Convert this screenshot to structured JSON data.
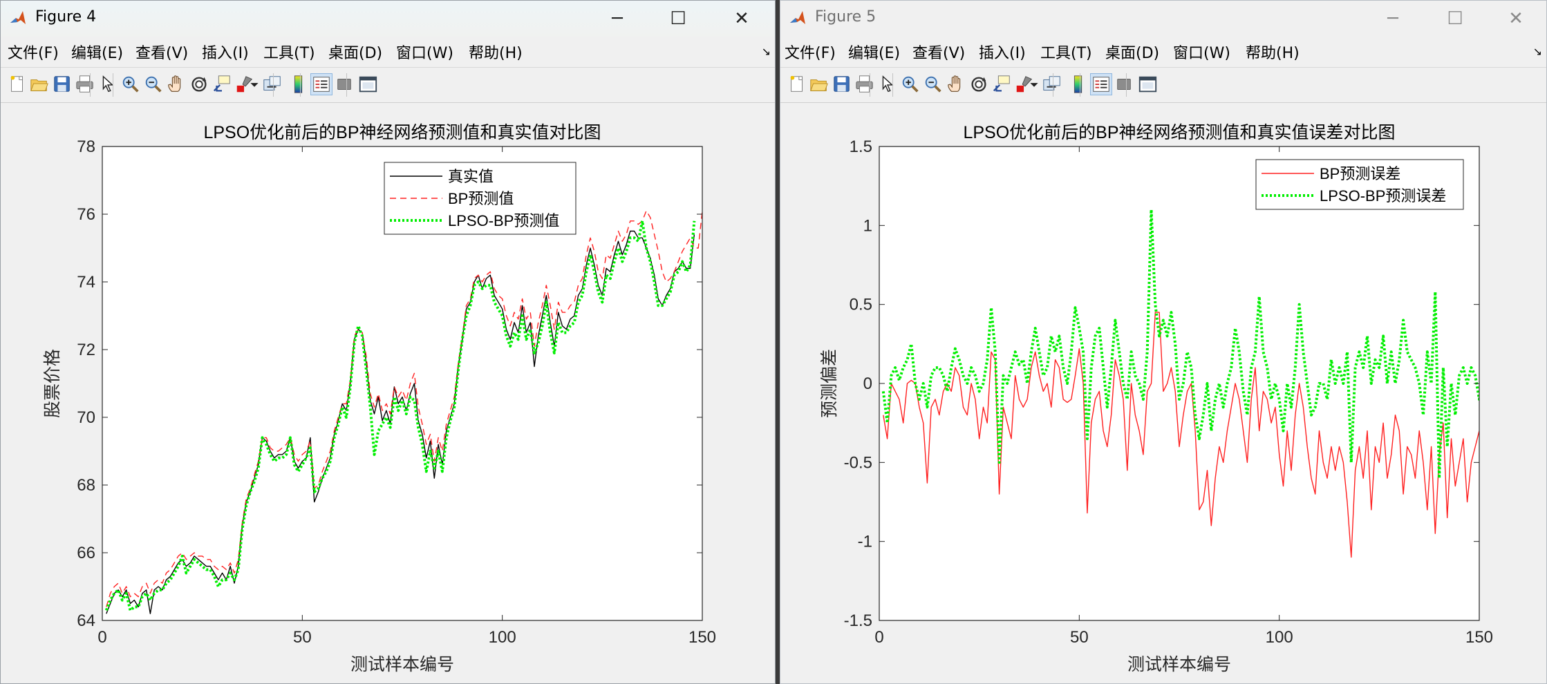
{
  "colors": {
    "truth_line": "#000000",
    "bp_line": "#ff2020",
    "lpso_line": "#00ee00",
    "plot_bg": "#ffffff",
    "window_bg": "#f0f0f0"
  },
  "menu_labels": [
    "文件(F)",
    "编辑(E)",
    "查看(V)",
    "插入(I)",
    "工具(T)",
    "桌面(D)",
    "窗口(W)",
    "帮助(H)"
  ],
  "toolbar_icons": [
    "new-figure-icon",
    "open-file-icon",
    "save-icon",
    "print-icon",
    "edit-plot-arrow-icon",
    "zoom-in-icon",
    "zoom-out-icon",
    "pan-hand-icon",
    "rotate-3d-icon",
    "data-cursor-icon",
    "brush-icon",
    "brush-dropdown-icon",
    "link-plot-icon",
    "insert-colorbar-icon",
    "insert-legend-icon",
    "hide-plot-tools-icon",
    "show-plot-tools-icon"
  ],
  "window4": {
    "title": "Figure 4",
    "window_controls": {
      "minimize": "─",
      "maximize": "☐",
      "close": "✕"
    }
  },
  "window5": {
    "title": "Figure 5",
    "window_controls": {
      "minimize": "─",
      "maximize": "☐",
      "close": "✕"
    }
  },
  "chart_data": [
    {
      "type": "line",
      "title": "LPSO优化前后的BP神经网络预测值和真实值对比图",
      "xlabel": "测试样本编号",
      "ylabel": "股票价格",
      "xlim": [
        0,
        150
      ],
      "ylim": [
        64,
        78
      ],
      "x_ticks": [
        0,
        50,
        100,
        150
      ],
      "y_ticks": [
        64,
        66,
        68,
        70,
        72,
        74,
        76,
        78
      ],
      "legend_position": "top-center",
      "series_x_start": 1,
      "series": [
        {
          "name": "真实值",
          "style": "solid",
          "values": [
            64.2,
            64.5,
            64.8,
            64.9,
            64.7,
            64.9,
            64.5,
            64.6,
            64.4,
            64.8,
            64.9,
            64.2,
            64.9,
            65.0,
            64.9,
            65.2,
            65.3,
            65.5,
            65.7,
            65.8,
            65.6,
            65.7,
            65.9,
            65.8,
            65.7,
            65.6,
            65.6,
            65.4,
            65.2,
            65.4,
            65.2,
            65.6,
            65.1,
            65.6,
            66.8,
            67.5,
            67.8,
            68.2,
            68.6,
            69.4,
            69.3,
            69.0,
            68.8,
            68.9,
            68.9,
            69.0,
            69.4,
            68.7,
            68.5,
            68.7,
            68.8,
            69.4,
            67.5,
            67.8,
            68.2,
            68.5,
            68.8,
            69.5,
            69.9,
            70.4,
            70.2,
            71.0,
            72.3,
            72.6,
            72.5,
            71.6,
            70.5,
            70.1,
            70.6,
            69.9,
            70.2,
            69.8,
            70.9,
            70.4,
            70.6,
            70.2,
            70.7,
            71.0,
            69.9,
            69.5,
            68.8,
            69.3,
            68.2,
            69.2,
            68.6,
            69.6,
            70.0,
            70.4,
            71.5,
            72.3,
            73.2,
            73.4,
            74.0,
            74.2,
            73.8,
            74.1,
            74.2,
            73.6,
            73.4,
            73.2,
            72.6,
            72.3,
            72.8,
            72.5,
            73.3,
            72.5,
            72.8,
            71.5,
            72.4,
            73.0,
            73.6,
            72.8,
            72.1,
            73.1,
            72.7,
            72.6,
            72.9,
            73.0,
            73.6,
            73.8,
            74.5,
            75.0,
            74.5,
            73.9,
            73.6,
            74.4,
            74.3,
            74.8,
            75.2,
            74.8,
            75.1,
            75.5,
            75.5,
            75.3,
            75.3,
            75.0,
            74.7,
            74.2,
            73.5,
            73.3,
            73.6,
            73.8,
            74.3,
            74.4,
            74.6,
            74.4,
            74.4,
            75.4
          ]
        },
        {
          "name": "BP预测值",
          "style": "dashed",
          "values": [
            64.4,
            64.8,
            65.0,
            65.1,
            64.8,
            65.0,
            64.7,
            64.8,
            64.7,
            65.0,
            65.1,
            64.8,
            65.1,
            65.2,
            65.1,
            65.4,
            65.5,
            65.7,
            65.9,
            66.0,
            65.8,
            65.9,
            66.0,
            65.9,
            65.9,
            65.8,
            65.8,
            65.6,
            65.5,
            65.6,
            65.5,
            65.7,
            65.4,
            65.8,
            66.9,
            67.6,
            67.9,
            68.3,
            68.7,
            69.4,
            69.4,
            69.1,
            69.0,
            69.0,
            69.1,
            69.2,
            69.4,
            68.9,
            68.7,
            68.9,
            69.0,
            69.3,
            67.9,
            68.0,
            68.4,
            68.7,
            69.0,
            69.6,
            70.0,
            70.4,
            70.4,
            71.1,
            72.4,
            72.6,
            72.5,
            71.8,
            70.7,
            70.3,
            70.7,
            70.2,
            70.4,
            70.1,
            70.9,
            70.6,
            70.8,
            70.5,
            71.0,
            71.3,
            70.3,
            69.8,
            69.2,
            69.5,
            68.7,
            69.4,
            69.0,
            69.8,
            70.2,
            70.6,
            71.6,
            72.4,
            73.3,
            73.5,
            74.1,
            74.2,
            74.0,
            74.2,
            74.3,
            73.8,
            73.6,
            73.5,
            73.0,
            72.7,
            73.1,
            72.9,
            73.5,
            72.9,
            73.1,
            72.1,
            72.8,
            73.3,
            73.9,
            73.3,
            72.6,
            73.4,
            73.1,
            73.1,
            73.3,
            73.4,
            73.9,
            74.1,
            74.8,
            75.3,
            74.9,
            74.3,
            74.1,
            74.8,
            74.7,
            75.1,
            75.5,
            75.2,
            75.4,
            75.8,
            75.8,
            75.7,
            75.8,
            76.1,
            75.9,
            75.4,
            74.9,
            74.3,
            74.0,
            74.1,
            74.3,
            74.6,
            74.9,
            75.1,
            75.3,
            75.0,
            75.0,
            76.1
          ]
        },
        {
          "name": "LPSO-BP预测值",
          "style": "dotted",
          "values": [
            64.3,
            64.6,
            64.8,
            64.9,
            64.6,
            64.8,
            64.3,
            64.4,
            64.4,
            64.7,
            64.8,
            64.6,
            64.8,
            64.9,
            64.9,
            65.1,
            65.2,
            65.4,
            65.6,
            65.9,
            65.4,
            65.6,
            65.8,
            65.7,
            65.6,
            65.5,
            65.5,
            65.3,
            65.0,
            65.2,
            65.2,
            65.4,
            65.2,
            65.5,
            66.7,
            67.4,
            67.8,
            68.1,
            68.5,
            69.4,
            69.2,
            68.9,
            68.7,
            68.8,
            68.8,
            68.9,
            69.4,
            68.6,
            68.4,
            68.6,
            68.8,
            69.1,
            67.8,
            67.9,
            68.2,
            68.4,
            68.7,
            69.4,
            69.8,
            70.3,
            70.0,
            70.9,
            72.2,
            72.7,
            72.4,
            71.4,
            70.3,
            68.9,
            69.6,
            69.8,
            70.0,
            69.7,
            70.6,
            70.2,
            70.5,
            70.1,
            70.6,
            70.5,
            69.7,
            69.2,
            68.4,
            69.0,
            68.5,
            69.0,
            68.4,
            69.4,
            69.9,
            70.3,
            71.4,
            72.3,
            73.0,
            73.3,
            73.9,
            74.0,
            73.8,
            73.9,
            73.9,
            73.4,
            73.2,
            73.0,
            72.4,
            72.1,
            72.5,
            72.3,
            73.0,
            72.3,
            72.6,
            71.9,
            72.2,
            72.7,
            73.4,
            72.5,
            71.9,
            72.8,
            72.5,
            72.5,
            72.7,
            72.8,
            73.4,
            73.6,
            74.3,
            74.8,
            74.3,
            73.7,
            73.4,
            74.2,
            74.1,
            74.6,
            75.0,
            74.6,
            74.9,
            75.3,
            75.3,
            75.2,
            75.8,
            75.0,
            74.6,
            74.0,
            73.3,
            73.3,
            73.5,
            73.7,
            74.2,
            74.3,
            74.6,
            74.3,
            74.5,
            75.8
          ]
        }
      ]
    },
    {
      "type": "line",
      "title": "LPSO优化前后的BP神经网络预测值和真实值误差对比图",
      "xlabel": "测试样本编号",
      "ylabel": "预测偏差",
      "xlim": [
        0,
        150
      ],
      "ylim": [
        -1.5,
        1.5
      ],
      "x_ticks": [
        0,
        50,
        100,
        150
      ],
      "y_ticks": [
        -1.5,
        -1,
        -0.5,
        0,
        0.5,
        1,
        1.5
      ],
      "legend_position": "top-right",
      "series_x_start": 1,
      "series": [
        {
          "name": "BP预测误差",
          "style": "solid",
          "values": [
            -0.2,
            -0.35,
            0.0,
            -0.05,
            -0.1,
            -0.25,
            0.0,
            0.02,
            0.0,
            -0.15,
            -0.25,
            -0.63,
            -0.15,
            -0.1,
            -0.2,
            -0.05,
            0.0,
            -0.05,
            0.1,
            0.05,
            -0.15,
            -0.2,
            0.0,
            -0.1,
            -0.35,
            -0.15,
            -0.25,
            0.2,
            0.15,
            -0.7,
            -0.15,
            -0.25,
            -0.35,
            0.05,
            -0.1,
            -0.15,
            -0.1,
            0.1,
            0.2,
            0.05,
            -0.05,
            0.0,
            -0.15,
            0.15,
            0.1,
            -0.1,
            -0.12,
            -0.1,
            0.05,
            0.22,
            0.0,
            -0.82,
            -0.25,
            -0.1,
            -0.05,
            -0.3,
            -0.4,
            -0.2,
            0.15,
            0.05,
            -0.1,
            -0.55,
            0.0,
            -0.2,
            -0.3,
            -0.45,
            -0.05,
            0.0,
            0.45,
            0.45,
            -0.05,
            0.0,
            0.1,
            -0.05,
            -0.4,
            -0.2,
            -0.05,
            0.0,
            -0.3,
            -0.8,
            -0.75,
            -0.55,
            -0.9,
            -0.6,
            -0.4,
            -0.5,
            -0.3,
            -0.15,
            0.0,
            -0.1,
            -0.3,
            -0.5,
            -0.1,
            0.1,
            -0.3,
            -0.05,
            -0.1,
            -0.25,
            -0.15,
            -0.45,
            -0.65,
            -0.3,
            -0.55,
            -0.2,
            0.0,
            -0.15,
            -0.4,
            -0.6,
            -0.7,
            -0.3,
            -0.5,
            -0.6,
            -0.4,
            -0.55,
            -0.4,
            -0.5,
            -0.75,
            -1.1,
            -0.55,
            -0.4,
            -0.6,
            -0.3,
            -0.8,
            -0.4,
            -0.5,
            -0.25,
            -0.6,
            -0.45,
            -0.2,
            -0.3,
            -0.7,
            -0.4,
            -0.45,
            -0.6,
            -0.3,
            -0.5,
            -0.8,
            -0.4,
            -0.95,
            -0.45,
            -0.25,
            -0.85,
            -0.35,
            -0.65,
            -0.5,
            -0.35,
            -0.75,
            -0.5,
            -0.4,
            -0.3,
            -0.8,
            -0.2,
            -0.3
          ]
        },
        {
          "name": "LPSO-BP预测误差",
          "style": "dotted",
          "values": [
            -0.05,
            -0.25,
            0.05,
            0.1,
            0.02,
            0.1,
            0.15,
            0.25,
            0.0,
            -0.1,
            0.0,
            -0.15,
            0.05,
            0.1,
            0.1,
            0.05,
            -0.05,
            0.1,
            0.22,
            0.15,
            0.05,
            0.0,
            0.1,
            0.05,
            -0.05,
            0.0,
            0.15,
            0.48,
            0.2,
            -0.5,
            0.05,
            0.0,
            0.1,
            0.2,
            0.12,
            0.15,
            0.0,
            0.2,
            0.35,
            0.2,
            0.05,
            0.1,
            0.3,
            0.2,
            0.3,
            0.1,
            0.0,
            0.2,
            0.48,
            0.35,
            0.2,
            -0.35,
            0.1,
            0.3,
            0.35,
            0.1,
            -0.15,
            0.1,
            0.4,
            0.2,
            0.0,
            -0.1,
            0.2,
            0.05,
            0.0,
            -0.1,
            0.2,
            1.1,
            0.5,
            0.3,
            0.4,
            0.3,
            0.45,
            0.25,
            -0.1,
            0.0,
            0.2,
            0.1,
            -0.2,
            -0.35,
            -0.2,
            0.0,
            -0.3,
            -0.1,
            0.0,
            -0.15,
            0.0,
            0.1,
            0.35,
            0.2,
            -0.05,
            -0.2,
            0.1,
            0.2,
            0.55,
            0.2,
            0.1,
            -0.1,
            0.0,
            -0.1,
            -0.3,
            0.0,
            -0.15,
            0.1,
            0.5,
            0.2,
            0.0,
            -0.2,
            -0.15,
            0.0,
            0.0,
            -0.1,
            0.15,
            0.0,
            0.1,
            0.0,
            0.2,
            -0.5,
            0.1,
            0.2,
            0.1,
            0.3,
            0.0,
            0.15,
            0.1,
            0.3,
            0.0,
            0.2,
            0.0,
            0.15,
            0.4,
            0.2,
            0.15,
            0.1,
            0.0,
            -0.2,
            0.2,
            0.0,
            0.58,
            -0.6,
            0.1,
            -0.4,
            0.0,
            -0.2,
            0.05,
            0.1,
            0.0,
            0.1,
            0.05,
            -0.1,
            0.0,
            0.35,
            0.2
          ]
        }
      ]
    }
  ]
}
